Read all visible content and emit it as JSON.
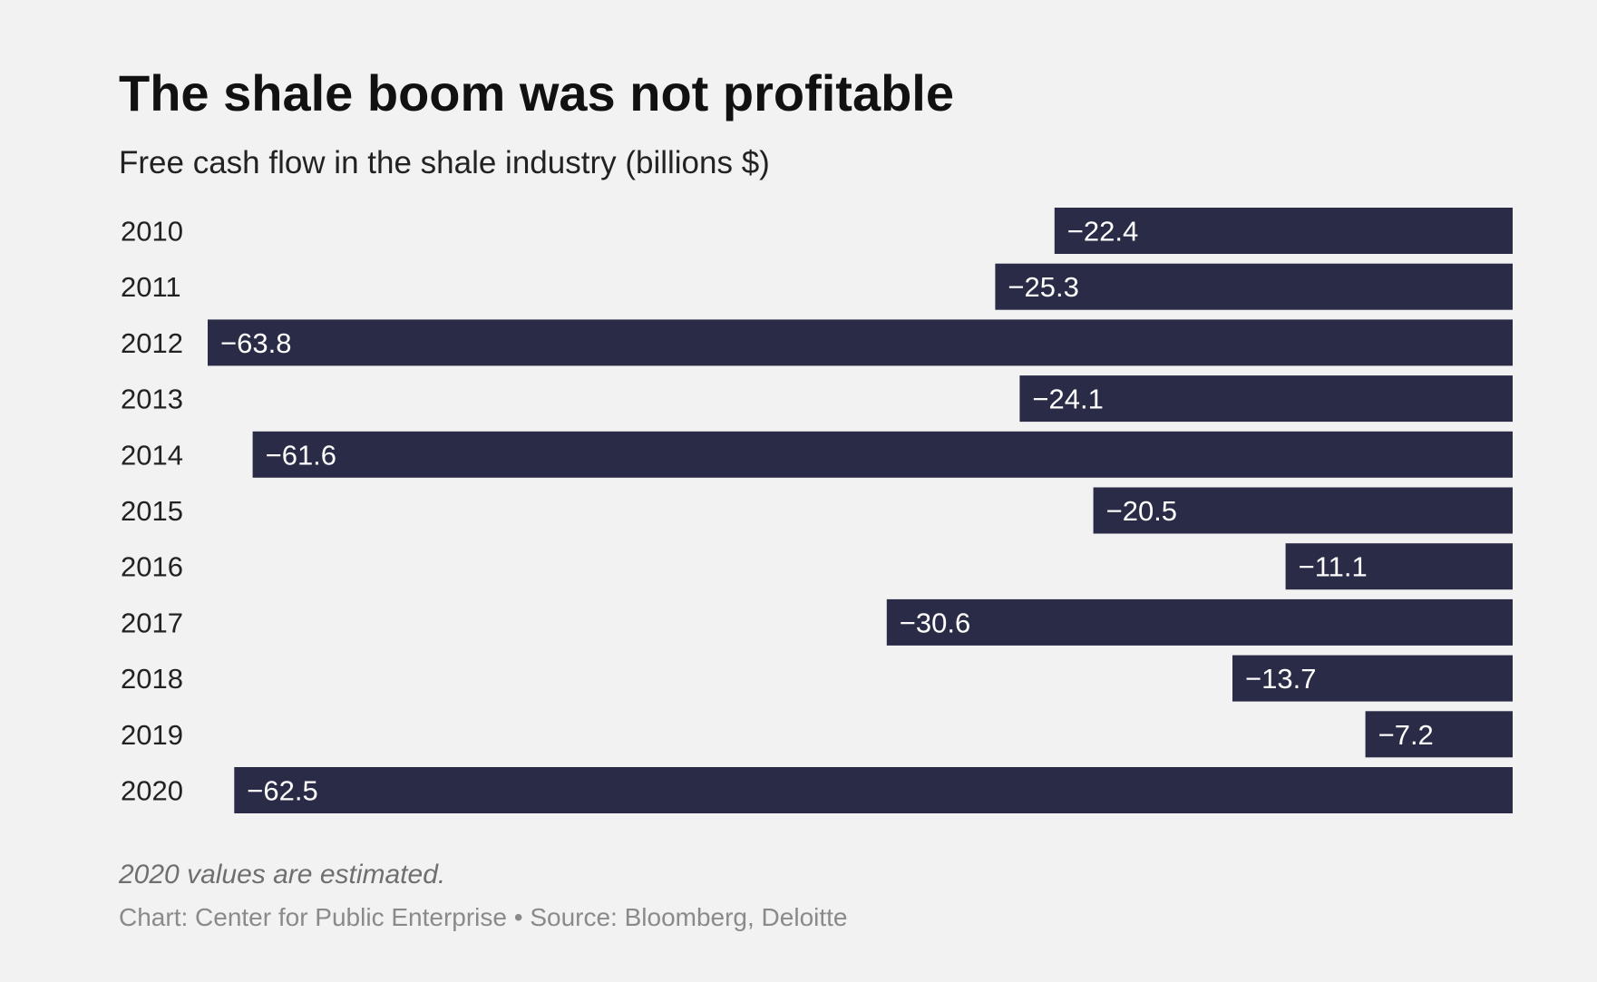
{
  "header": {
    "title": "The shale boom was not profitable",
    "subtitle": "Free cash flow in the shale industry (billions $)"
  },
  "footer": {
    "note": "2020 values are estimated.",
    "credit": "Chart: Center for Public Enterprise • Source: Bloomberg, Deloitte"
  },
  "colors": {
    "bar": "#2a2b47",
    "bar_label": "#ffffff",
    "axis_label": "#222222",
    "background": "#f2f2f2"
  },
  "chart_data": {
    "type": "bar",
    "orientation": "horizontal",
    "title": "The shale boom was not profitable",
    "subtitle": "Free cash flow in the shale industry (billions $)",
    "categories": [
      "2010",
      "2011",
      "2012",
      "2013",
      "2014",
      "2015",
      "2016",
      "2017",
      "2018",
      "2019",
      "2020"
    ],
    "values": [
      -22.4,
      -25.3,
      -63.8,
      -24.1,
      -61.6,
      -20.5,
      -11.1,
      -30.6,
      -13.7,
      -7.2,
      -62.5
    ],
    "labels": [
      "−22.4",
      "−25.3",
      "−63.8",
      "−24.1",
      "−61.6",
      "−20.5",
      "−11.1",
      "−30.6",
      "−13.7",
      "−7.2",
      "−62.5"
    ],
    "xlim": [
      -63.8,
      0
    ],
    "grid": false,
    "legend": "none"
  }
}
